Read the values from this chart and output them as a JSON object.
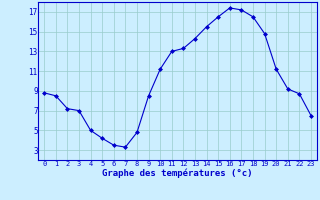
{
  "x": [
    0,
    1,
    2,
    3,
    4,
    5,
    6,
    7,
    8,
    9,
    10,
    11,
    12,
    13,
    14,
    15,
    16,
    17,
    18,
    19,
    20,
    21,
    22,
    23
  ],
  "y": [
    8.8,
    8.5,
    7.2,
    7.0,
    5.0,
    4.2,
    3.5,
    3.3,
    4.8,
    8.5,
    11.2,
    13.0,
    13.3,
    14.3,
    15.5,
    16.5,
    17.4,
    17.2,
    16.5,
    14.8,
    11.2,
    9.2,
    8.7,
    6.5
  ],
  "line_color": "#0000cc",
  "marker": "D",
  "marker_size": 2.0,
  "bg_color": "#cceeff",
  "grid_color": "#99cccc",
  "xlabel": "Graphe des températures (°c)",
  "xlabel_color": "#0000cc",
  "tick_color": "#0000cc",
  "ylim": [
    2,
    18
  ],
  "yticks": [
    3,
    5,
    7,
    9,
    11,
    13,
    15,
    17
  ],
  "xticks": [
    0,
    1,
    2,
    3,
    4,
    5,
    6,
    7,
    8,
    9,
    10,
    11,
    12,
    13,
    14,
    15,
    16,
    17,
    18,
    19,
    20,
    21,
    22,
    23
  ],
  "spine_color": "#0000cc",
  "tick_fontsize": 5.0,
  "xlabel_fontsize": 6.5
}
